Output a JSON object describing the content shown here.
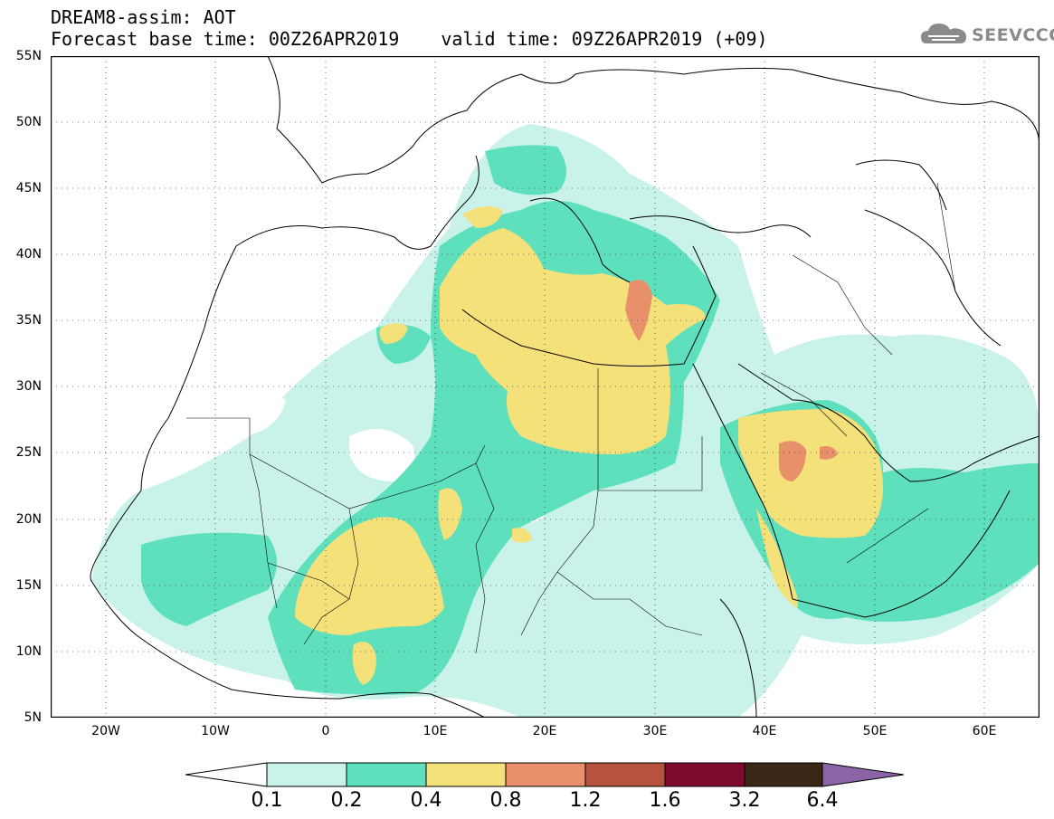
{
  "title": {
    "line1": "DREAM8-assim: AOT",
    "base_time": "Forecast base time: 00Z26APR2019",
    "valid_time": "valid time: 09Z26APR2019 (+09)"
  },
  "logo": {
    "text": "SEEVCCC",
    "icon": "cloud-icon"
  },
  "map": {
    "lat_labels": [
      "55N",
      "50N",
      "45N",
      "40N",
      "35N",
      "30N",
      "25N",
      "20N",
      "15N",
      "10N",
      "5N"
    ],
    "lon_labels": [
      "20W",
      "10W",
      "0",
      "10E",
      "20E",
      "30E",
      "40E",
      "50E",
      "60E"
    ],
    "extent": {
      "lon": [
        -25,
        65
      ],
      "lat": [
        5,
        55
      ]
    }
  },
  "colorbar": {
    "levels": [
      "0.1",
      "0.2",
      "0.4",
      "0.8",
      "1.2",
      "1.6",
      "3.2",
      "6.4"
    ],
    "colors": [
      "#ffffff",
      "#c9f2ea",
      "#5ee0bd",
      "#f5e179",
      "#e8906a",
      "#b5533e",
      "#7e0b2e",
      "#3a2614",
      "#8b64a8"
    ]
  },
  "fields": {
    "colors": {
      "l1": "#c9f2ea",
      "l2": "#5ee0bd",
      "l3": "#f5e179",
      "l4": "#e8906a"
    }
  }
}
